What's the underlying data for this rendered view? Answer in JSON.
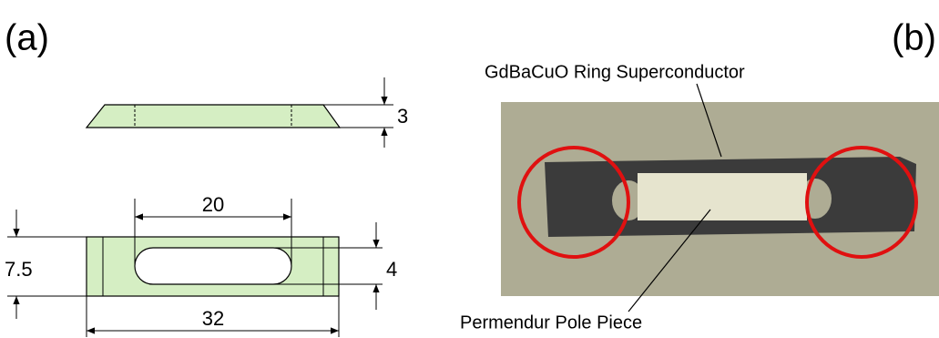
{
  "panel_a": {
    "label": "(a)",
    "dimensions": {
      "thickness": "3",
      "slot_length": "20",
      "width": "7.5",
      "slot_width": "4",
      "length": "32"
    }
  },
  "panel_b": {
    "label": "(b)",
    "annotations": [
      "GdBaCuO Ring Superconductor",
      "Permendur Pole Piece"
    ]
  }
}
